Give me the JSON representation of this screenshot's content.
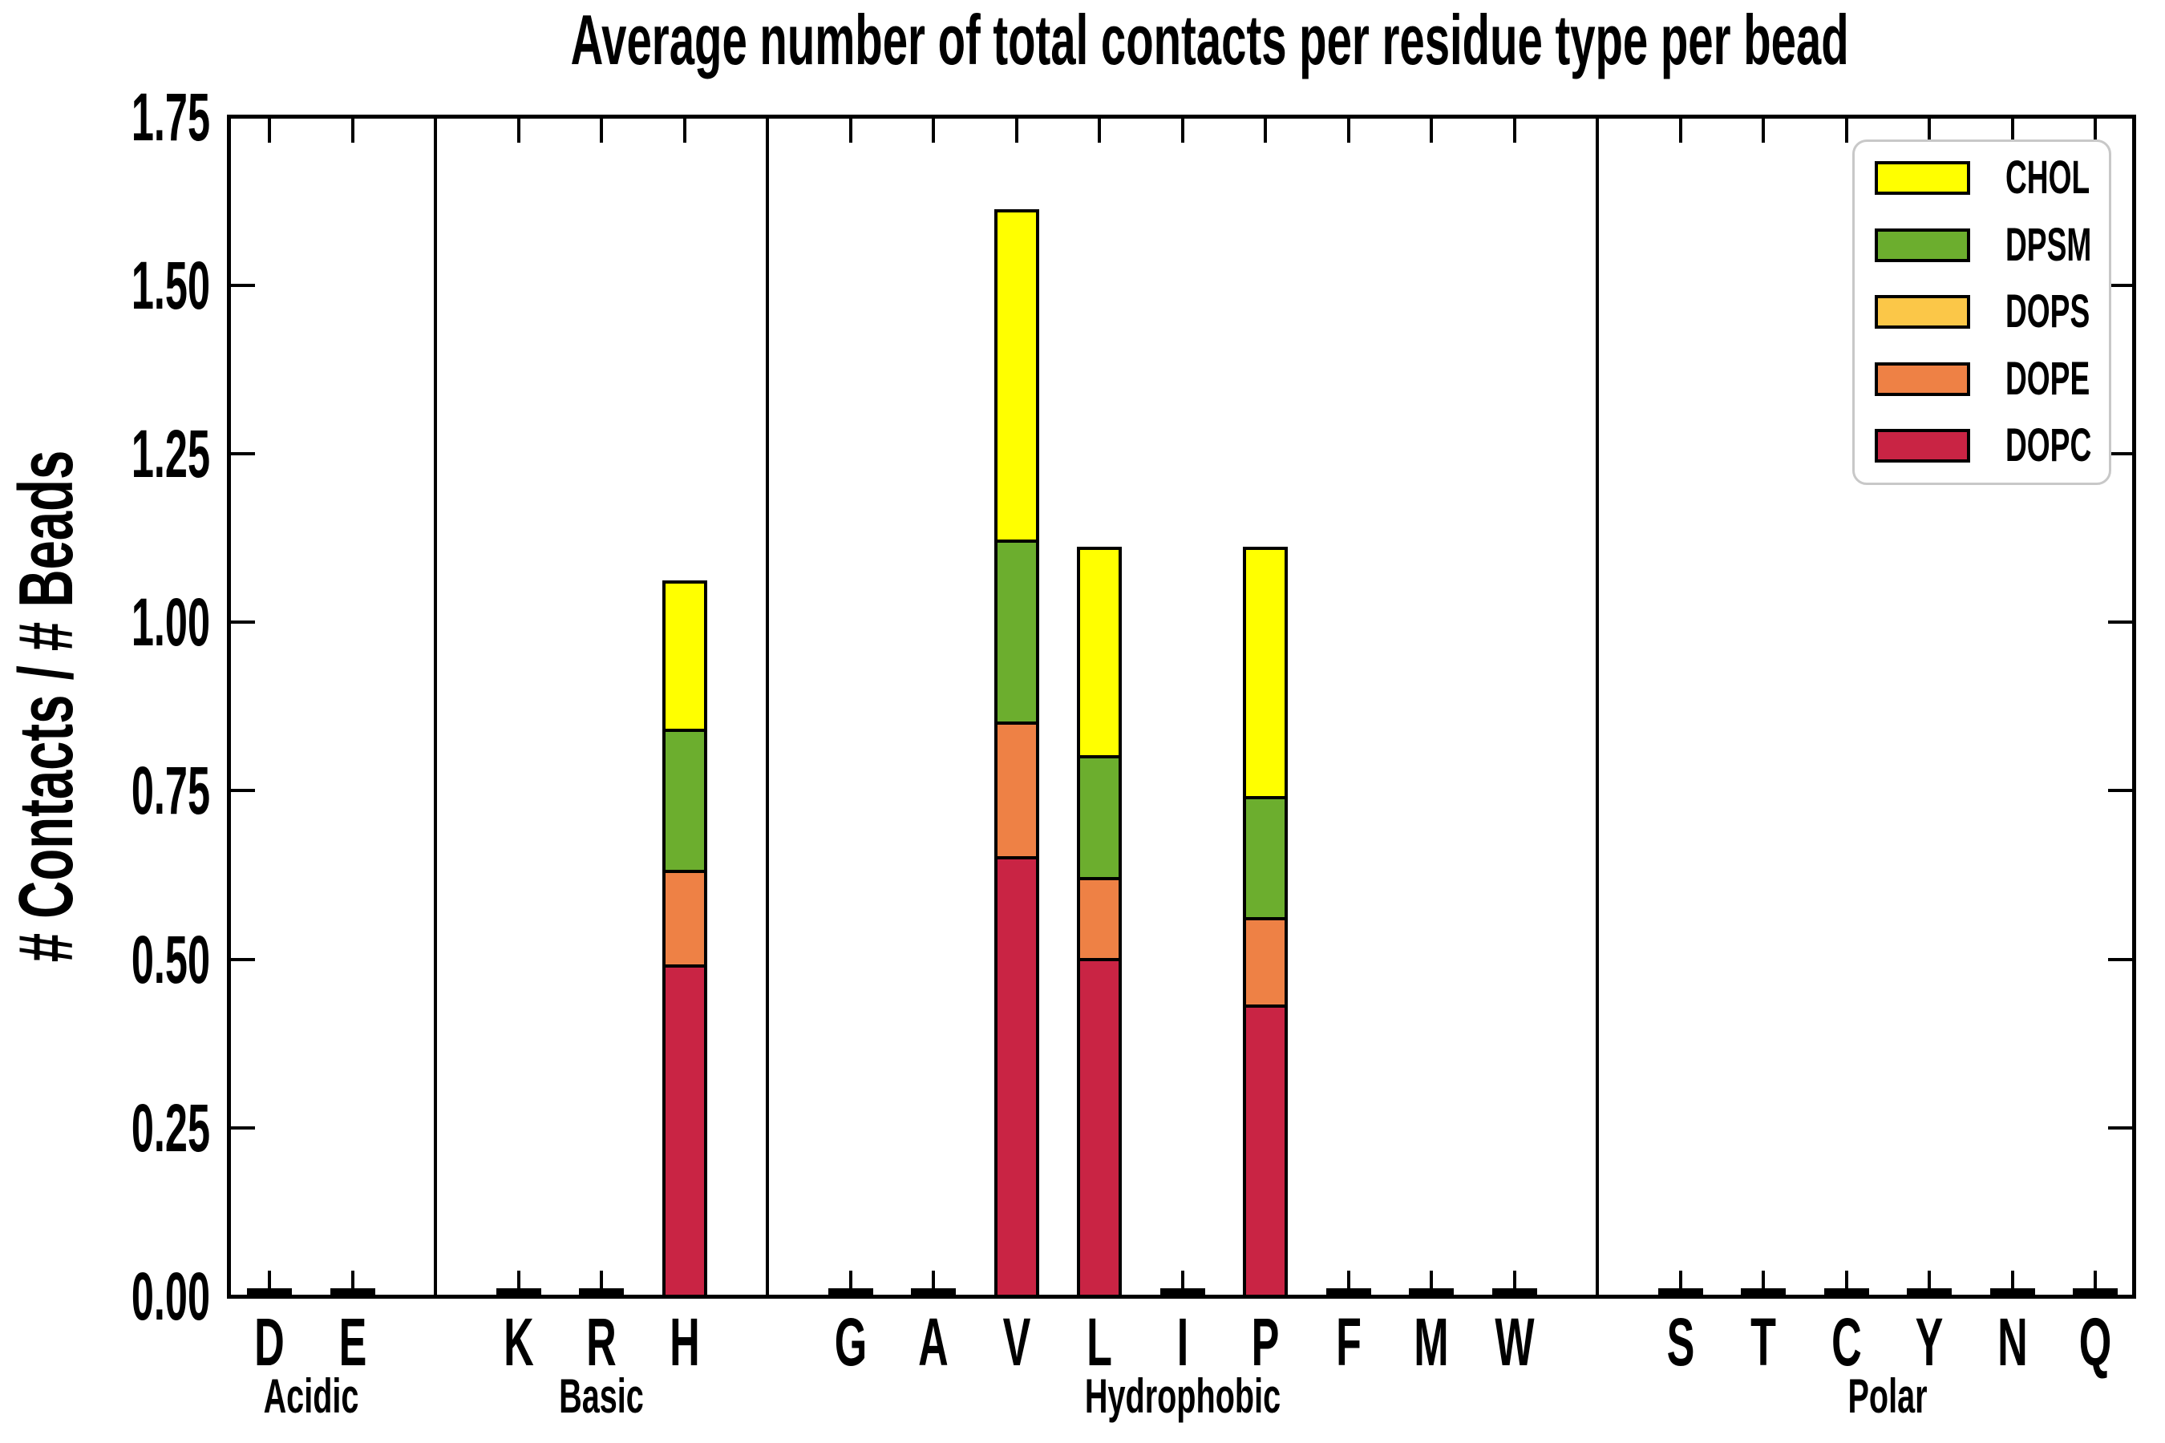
{
  "chart_data": {
    "type": "bar",
    "stacked": true,
    "title": "Average number of total contacts per residue type per bead",
    "ylabel": "# Contacts / # Beads",
    "xlabel": "",
    "ylim": [
      0,
      1.75
    ],
    "ytick_labels": [
      "0.00",
      "0.25",
      "0.50",
      "0.75",
      "1.00",
      "1.25",
      "1.50",
      "1.75"
    ],
    "grid": false,
    "legend_position": "upper right",
    "legend_order": [
      "CHOL",
      "DPSM",
      "DOPS",
      "DOPE",
      "DOPC"
    ],
    "categories": [
      "D",
      "E",
      "K",
      "R",
      "H",
      "G",
      "A",
      "V",
      "L",
      "I",
      "P",
      "F",
      "M",
      "W",
      "S",
      "T",
      "C",
      "Y",
      "N",
      "Q"
    ],
    "groups": [
      {
        "label": "Acidic",
        "residues": [
          "D",
          "E"
        ]
      },
      {
        "label": "Basic",
        "residues": [
          "K",
          "R",
          "H"
        ]
      },
      {
        "label": "Hydrophobic",
        "residues": [
          "G",
          "A",
          "V",
          "L",
          "I",
          "P",
          "F",
          "M",
          "W"
        ]
      },
      {
        "label": "Polar",
        "residues": [
          "S",
          "T",
          "C",
          "Y",
          "N",
          "Q"
        ]
      }
    ],
    "series": [
      {
        "name": "DOPC",
        "color": "#C92444",
        "values": [
          0,
          0,
          0,
          0,
          0.49,
          0,
          0,
          0.65,
          0.5,
          0,
          0.43,
          0,
          0,
          0,
          0,
          0,
          0,
          0,
          0,
          0
        ]
      },
      {
        "name": "DOPE",
        "color": "#EE8145",
        "values": [
          0,
          0,
          0,
          0,
          0.14,
          0,
          0,
          0.2,
          0.12,
          0,
          0.13,
          0,
          0,
          0,
          0,
          0,
          0,
          0,
          0,
          0
        ]
      },
      {
        "name": "DOPS",
        "color": "#FBC748",
        "values": [
          0,
          0,
          0,
          0,
          0,
          0,
          0,
          0,
          0,
          0,
          0,
          0,
          0,
          0,
          0,
          0,
          0,
          0,
          0,
          0
        ]
      },
      {
        "name": "DPSM",
        "color": "#6CAE2E",
        "values": [
          0,
          0,
          0,
          0,
          0.21,
          0,
          0,
          0.27,
          0.18,
          0,
          0.18,
          0,
          0,
          0,
          0,
          0,
          0,
          0,
          0,
          0
        ]
      },
      {
        "name": "CHOL",
        "color": "#FFFF00",
        "values": [
          0,
          0,
          0,
          0,
          0.22,
          0,
          0,
          0.49,
          0.31,
          0,
          0.37,
          0,
          0,
          0,
          0,
          0,
          0,
          0,
          0,
          0
        ]
      }
    ]
  }
}
